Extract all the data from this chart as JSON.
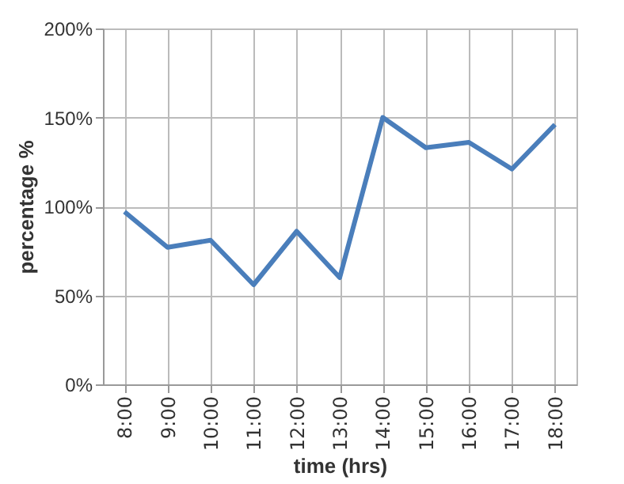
{
  "chart_data": {
    "type": "line",
    "xlabel": "time (hrs)",
    "ylabel": "percentage %",
    "categories": [
      "8:00",
      "9:00",
      "10:00",
      "11:00",
      "12:00",
      "13:00",
      "14:00",
      "15:00",
      "16:00",
      "17:00",
      "18:00"
    ],
    "series": [
      {
        "color": "#4a7ebb",
        "values": [
          97,
          77,
          81,
          56,
          86,
          60,
          150,
          133,
          136,
          121,
          146
        ]
      }
    ],
    "ylim": [
      0,
      200
    ],
    "yticks": [
      {
        "value": 0,
        "label": "0%"
      },
      {
        "value": 50,
        "label": "50%"
      },
      {
        "value": 100,
        "label": "100%"
      },
      {
        "value": 150,
        "label": "150%"
      },
      {
        "value": 200,
        "label": "200%"
      }
    ],
    "grid": true,
    "marker": "none",
    "line_style": "solid"
  }
}
